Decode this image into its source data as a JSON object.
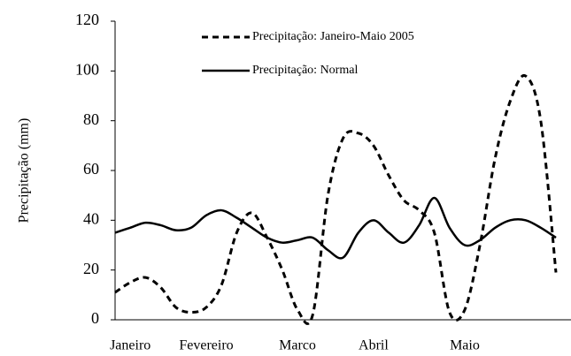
{
  "chart_data": {
    "type": "line",
    "ylabel": "Precipitação (mm)",
    "categories": [
      null,
      "Janeiro",
      null,
      null,
      null,
      null,
      "Fevereiro",
      null,
      null,
      null,
      null,
      null,
      "Marco",
      null,
      null,
      null,
      null,
      "Abril",
      null,
      null,
      null,
      null,
      null,
      "Maio",
      null,
      null,
      null,
      null,
      null,
      null
    ],
    "series": [
      {
        "name": "Precipitação: Janeiro-Maio 2005",
        "color": "#000000",
        "dash": true,
        "values": [
          11,
          15,
          17,
          13,
          5,
          3,
          5,
          14,
          35,
          43,
          33,
          20,
          4,
          2,
          50,
          73,
          75,
          70,
          58,
          48,
          44,
          35,
          3,
          4,
          30,
          65,
          88,
          98,
          80,
          19
        ]
      },
      {
        "name": "Precipitação: Normal",
        "color": "#000000",
        "dash": false,
        "values": [
          35,
          37,
          39,
          38,
          36,
          37,
          42,
          44,
          41,
          37,
          33,
          31,
          32,
          33,
          28,
          25,
          35,
          40,
          35,
          31,
          38,
          49,
          37,
          30,
          32,
          37,
          40,
          40,
          37,
          33
        ]
      }
    ],
    "ylim": [
      0,
      120
    ],
    "yticks": [
      0,
      20,
      40,
      60,
      80,
      100,
      120
    ]
  }
}
